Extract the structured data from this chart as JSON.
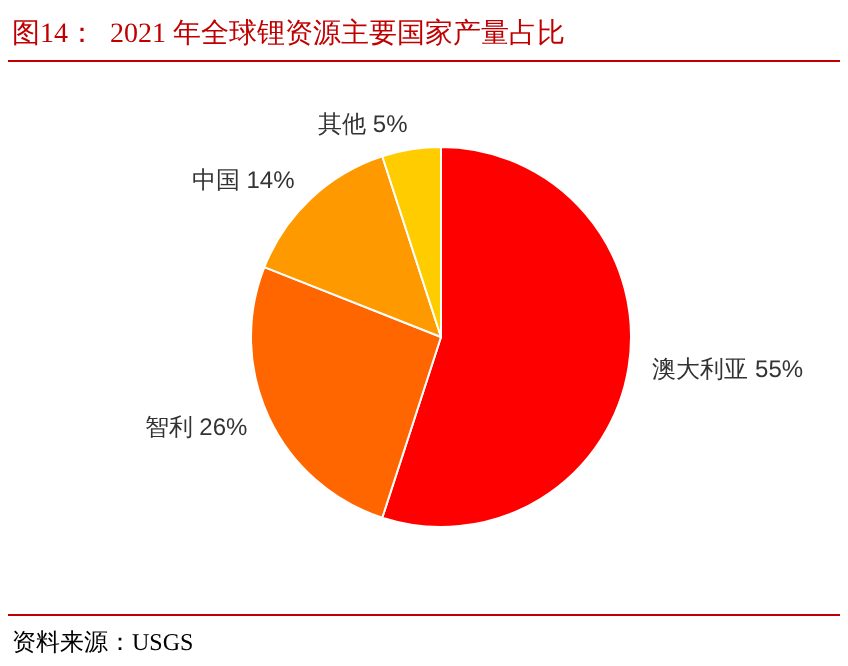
{
  "chart_data": {
    "type": "pie",
    "title": "图14：  2021 年全球锂资源主要国家产量占比",
    "categories": [
      "澳大利亚",
      "智利",
      "中国",
      "其他"
    ],
    "values": [
      55,
      26,
      14,
      5
    ],
    "value_labels": [
      "55%",
      "26%",
      "14%",
      "5%"
    ],
    "colors": [
      "#ff0000",
      "#ff6600",
      "#ff9900",
      "#ffcc00"
    ],
    "legend": false,
    "annotations": [
      "资料来源：USGS"
    ]
  }
}
